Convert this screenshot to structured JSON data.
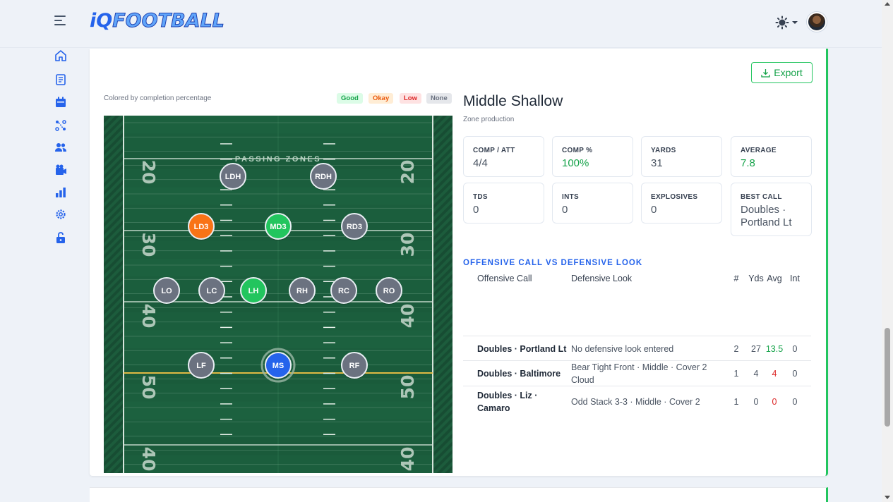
{
  "app": {
    "logo_iq": "iQ",
    "logo_football": "FOOTBALL"
  },
  "icons": {
    "menu": "hamburger-icon",
    "theme": "sun-icon",
    "export": "download-icon"
  },
  "sidebar": [
    "home-icon",
    "playbook-icon",
    "calendar-icon",
    "plays-icon",
    "users-icon",
    "film-icon",
    "stats-icon",
    "settings-icon",
    "unlock-icon"
  ],
  "export_label": "Export",
  "legend": {
    "caption": "Colored by completion percentage",
    "items": [
      {
        "label": "Good",
        "bg": "#dcfce7",
        "fg": "#16a34a"
      },
      {
        "label": "Okay",
        "bg": "#ffedd5",
        "fg": "#ea580c"
      },
      {
        "label": "Low",
        "bg": "#fee2e2",
        "fg": "#dc2626"
      },
      {
        "label": "None",
        "bg": "#e5e7eb",
        "fg": "#6b7280"
      }
    ]
  },
  "field": {
    "title": "PASSING ZONES",
    "yard_numbers": [
      "20",
      "30",
      "40",
      "50",
      "40"
    ],
    "zones": [
      {
        "id": "LDH",
        "status": "none"
      },
      {
        "id": "RDH",
        "status": "none"
      },
      {
        "id": "LD3",
        "status": "okay"
      },
      {
        "id": "MD3",
        "status": "good"
      },
      {
        "id": "RD3",
        "status": "none"
      },
      {
        "id": "LO",
        "status": "none"
      },
      {
        "id": "LC",
        "status": "none"
      },
      {
        "id": "LH",
        "status": "good"
      },
      {
        "id": "RH",
        "status": "none"
      },
      {
        "id": "RC",
        "status": "none"
      },
      {
        "id": "RO",
        "status": "none"
      },
      {
        "id": "LF",
        "status": "none"
      },
      {
        "id": "MS",
        "status": "selected"
      },
      {
        "id": "RF",
        "status": "none"
      }
    ],
    "colors": {
      "none": "#6b7280",
      "good": "#22c55e",
      "okay": "#f97316",
      "selected": "#2563eb"
    }
  },
  "zone": {
    "title": "Middle Shallow",
    "subtitle": "Zone production"
  },
  "stats": [
    {
      "label": "COMP / ATT",
      "value": "4/4",
      "green": false
    },
    {
      "label": "COMP %",
      "value": "100%",
      "green": true
    },
    {
      "label": "YARDS",
      "value": "31",
      "green": false
    },
    {
      "label": "AVERAGE",
      "value": "7.8",
      "green": true
    },
    {
      "label": "TDS",
      "value": "0",
      "green": false
    },
    {
      "label": "INTS",
      "value": "0",
      "green": false
    },
    {
      "label": "EXPLOSIVES",
      "value": "0",
      "green": false
    },
    {
      "label": "BEST CALL",
      "value": "Doubles · Portland Lt",
      "green": false
    }
  ],
  "table": {
    "title": "OFFENSIVE CALL VS DEFENSIVE LOOK",
    "headers": [
      "Offensive Call",
      "Defensive Look",
      "#",
      "Yds",
      "Avg",
      "Int"
    ],
    "rows": [
      {
        "call": "Doubles · Portland Lt",
        "look": "No defensive look entered",
        "n": "2",
        "yds": "27",
        "avg": "13.5",
        "avg_color": "#16a34a",
        "int": "0"
      },
      {
        "call": "Doubles · Baltimore",
        "look": "Bear Tight Front · Middle · Cover 2 Cloud",
        "n": "1",
        "yds": "4",
        "avg": "4",
        "avg_color": "#dc2626",
        "int": "0"
      },
      {
        "call": "Doubles · Liz · Camaro",
        "look": "Odd Stack 3-3 · Middle · Cover 2",
        "n": "1",
        "yds": "0",
        "avg": "0",
        "avg_color": "#dc2626",
        "int": "0"
      }
    ]
  }
}
